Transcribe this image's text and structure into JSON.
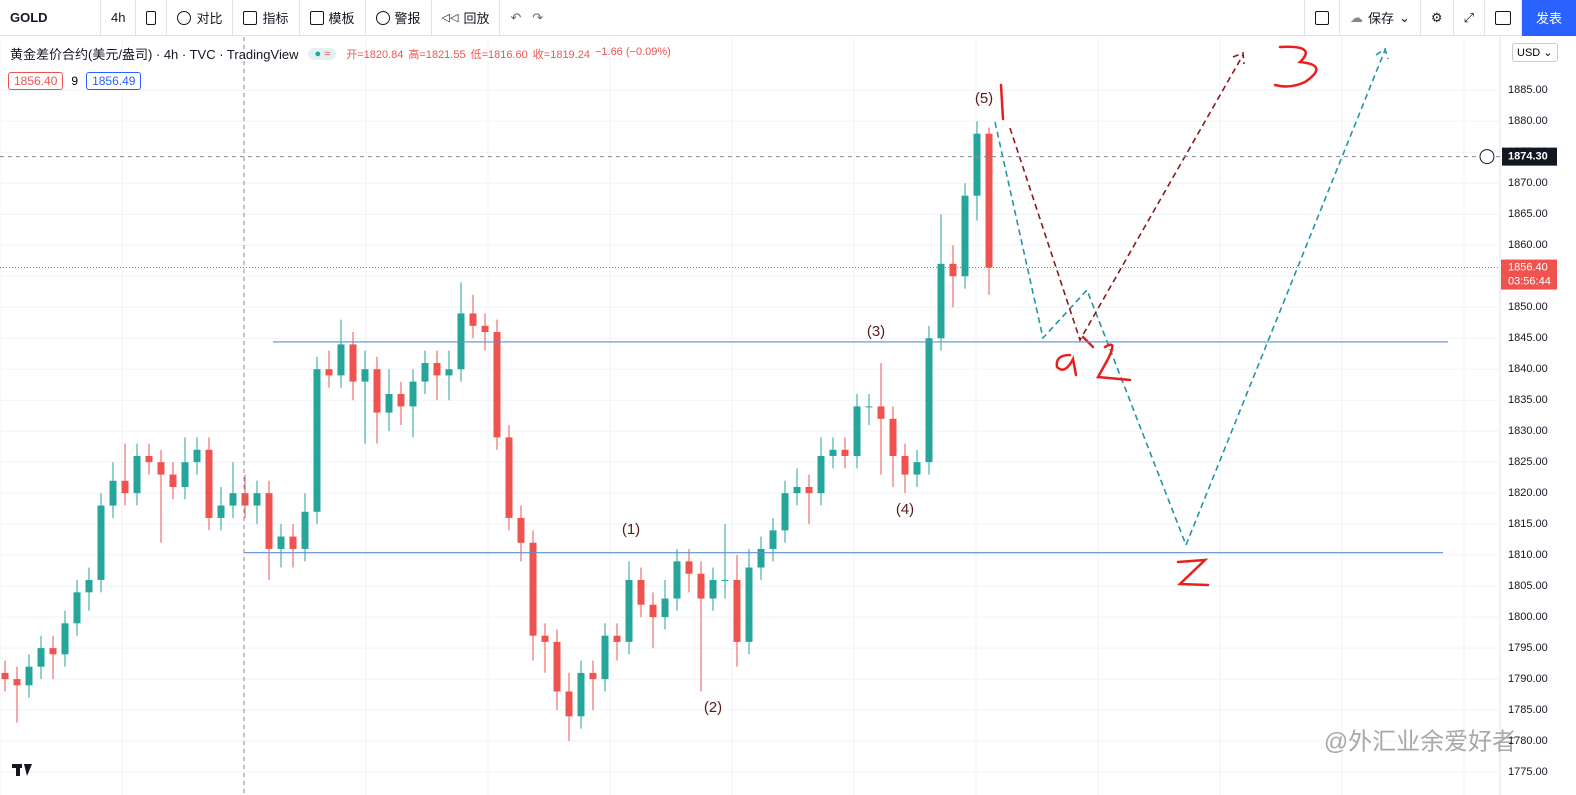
{
  "toolbar": {
    "symbol": "GOLD",
    "interval": "4h",
    "buttons": [
      "对比",
      "指标",
      "模板",
      "警报",
      "回放"
    ],
    "save": "保存",
    "publish": "发表"
  },
  "legend": {
    "title": "黄金差价合约(美元/盎司) · 4h · TVC · TradingView",
    "open": "开=1820.84",
    "high": "高=1821.55",
    "low": "低=1816.60",
    "close": "收=1819.24",
    "change": "−1.66 (−0.09%)",
    "bid": "1856.40",
    "spread": "9",
    "ask": "1856.49"
  },
  "currency": "USD",
  "watermark": "@外汇业余爱好者",
  "chart_data": {
    "type": "candlestick",
    "up_color": "#26a69a",
    "down_color": "#ef5350",
    "grid": true,
    "ylim": [
      1771.3,
      1893.6
    ],
    "yticks": [
      {
        "value": 1775,
        "label": "1775.00"
      },
      {
        "value": 1780,
        "label": "1780.00"
      },
      {
        "value": 1785,
        "label": "1785.00"
      },
      {
        "value": 1790,
        "label": "1790.00"
      },
      {
        "value": 1795,
        "label": "1795.00"
      },
      {
        "value": 1800,
        "label": "1800.00"
      },
      {
        "value": 1805,
        "label": "1805.00"
      },
      {
        "value": 1810,
        "label": "1810.00"
      },
      {
        "value": 1815,
        "label": "1815.00"
      },
      {
        "value": 1820,
        "label": "1820.00"
      },
      {
        "value": 1825,
        "label": "1825.00"
      },
      {
        "value": 1830,
        "label": "1830.00"
      },
      {
        "value": 1835,
        "label": "1835.00"
      },
      {
        "value": 1840,
        "label": "1840.00"
      },
      {
        "value": 1845,
        "label": "1845.00"
      },
      {
        "value": 1850,
        "label": "1850.00"
      },
      {
        "value": 1855,
        "label": "1855.00"
      },
      {
        "value": 1860,
        "label": "1860.00"
      },
      {
        "value": 1865,
        "label": "1865.00"
      },
      {
        "value": 1870,
        "label": "1870.00"
      },
      {
        "value": 1875,
        "label": "1875.00"
      },
      {
        "value": 1880,
        "label": "1880.00"
      },
      {
        "value": 1885,
        "label": "1885.00"
      }
    ],
    "open": [
      1791,
      1790,
      1789,
      1792,
      1795,
      1794,
      1799,
      1804,
      1806,
      1818,
      1822,
      1820,
      1826,
      1825,
      1823,
      1821,
      1825,
      1827,
      1816,
      1818,
      1820,
      1818,
      1820,
      1811,
      1813,
      1811,
      1817,
      1840,
      1839,
      1844,
      1838,
      1840,
      1833,
      1836,
      1834,
      1838,
      1841,
      1839,
      1840,
      1849,
      1847,
      1846,
      1829,
      1816,
      1812,
      1797,
      1796,
      1788,
      1784,
      1791,
      1790,
      1797,
      1796,
      1806,
      1802,
      1800,
      1803,
      1809,
      1807,
      1803,
      1806,
      1806,
      1796,
      1808,
      1811,
      1814,
      1820,
      1821,
      1820,
      1826,
      1827,
      1826,
      1834,
      1834,
      1832,
      1826,
      1823,
      1825,
      1845,
      1857,
      1855,
      1868,
      1878
    ],
    "high": [
      1793,
      1792,
      1794,
      1797,
      1797,
      1801,
      1806,
      1808,
      1820,
      1825,
      1828,
      1828,
      1828,
      1827,
      1825,
      1829,
      1829,
      1829,
      1821,
      1825,
      1823,
      1822,
      1822,
      1815,
      1815,
      1820,
      1842,
      1843,
      1848,
      1846,
      1843,
      1842,
      1840,
      1838,
      1840,
      1843,
      1843,
      1843,
      1854,
      1852,
      1849,
      1848,
      1831,
      1818,
      1814,
      1799,
      1798,
      1791,
      1793,
      1793,
      1799,
      1799,
      1809,
      1808,
      1804,
      1806,
      1811,
      1811,
      1809,
      1808,
      1815,
      1810,
      1811,
      1813,
      1816,
      1822,
      1824,
      1823,
      1829,
      1829,
      1829,
      1836,
      1836,
      1841,
      1834,
      1828,
      1827,
      1847,
      1865,
      1860,
      1870,
      1880,
      1879
    ],
    "low": [
      1788,
      1783,
      1787,
      1790,
      1790,
      1792,
      1797,
      1801,
      1804,
      1816,
      1818,
      1818,
      1823,
      1812,
      1819,
      1819,
      1823,
      1814,
      1814,
      1816,
      1816,
      1815,
      1806,
      1808,
      1808,
      1809,
      1815,
      1837,
      1837,
      1835,
      1828,
      1828,
      1830,
      1831,
      1829,
      1836,
      1835,
      1835,
      1838,
      1845,
      1843,
      1827,
      1814,
      1809,
      1793,
      1791,
      1785,
      1780,
      1782,
      1785,
      1788,
      1793,
      1794,
      1800,
      1795,
      1798,
      1801,
      1804,
      1788,
      1801,
      1803,
      1792,
      1794,
      1806,
      1809,
      1812,
      1818,
      1815,
      1818,
      1824,
      1824,
      1824,
      1831,
      1823,
      1821,
      1820,
      1821,
      1823,
      1843,
      1850,
      1853,
      1864,
      1852
    ],
    "close": [
      1790,
      1789,
      1792,
      1795,
      1794,
      1799,
      1804,
      1806,
      1818,
      1822,
      1820,
      1826,
      1825,
      1823,
      1821,
      1825,
      1827,
      1816,
      1818,
      1820,
      1818,
      1820,
      1811,
      1813,
      1811,
      1817,
      1840,
      1839,
      1844,
      1838,
      1840,
      1833,
      1836,
      1834,
      1838,
      1841,
      1839,
      1840,
      1849,
      1847,
      1846,
      1829,
      1816,
      1812,
      1797,
      1796,
      1788,
      1784,
      1791,
      1790,
      1797,
      1796,
      1806,
      1802,
      1800,
      1803,
      1809,
      1807,
      1803,
      1806,
      1806,
      1796,
      1808,
      1811,
      1814,
      1820,
      1821,
      1820,
      1826,
      1827,
      1826,
      1834,
      1834,
      1832,
      1826,
      1823,
      1825,
      1845,
      1857,
      1855,
      1868,
      1878,
      1856.4
    ],
    "levels": [
      1844.4,
      1810.4
    ],
    "last_price": {
      "value": 1856.4,
      "label": "1856.40",
      "countdown": "03:56:44"
    },
    "crosshair": {
      "value": 1874.3,
      "label": "1874.30"
    },
    "annotations": [
      "(1)",
      "(2)",
      "(3)",
      "(4)",
      "(5)"
    ]
  }
}
